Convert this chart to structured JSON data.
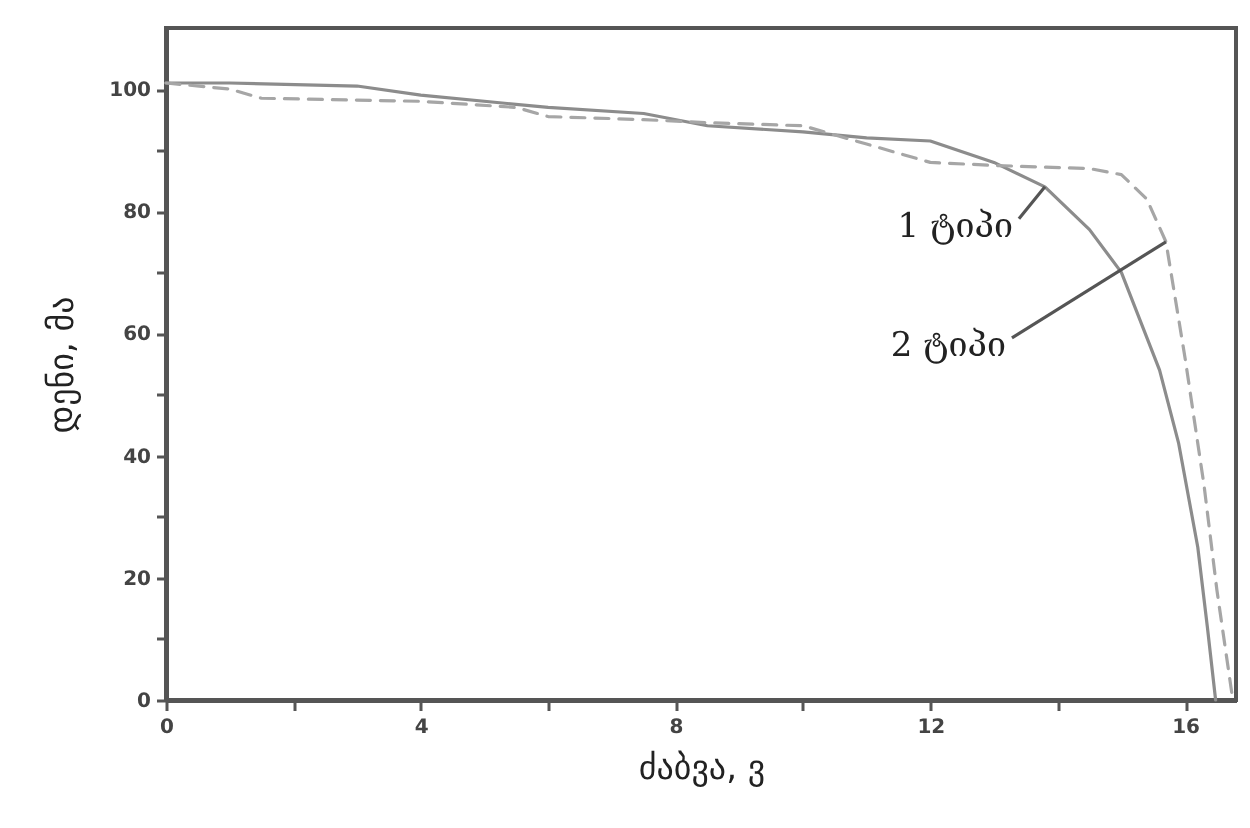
{
  "chart_data": {
    "type": "line",
    "xlabel": "ძაბვა, ვ",
    "ylabel": "დენი, მა",
    "xlim": [
      0,
      16.8
    ],
    "ylim": [
      0,
      110
    ],
    "xticks": [
      0,
      {
        "value": 2,
        "label": null
      },
      4,
      {
        "value": 6,
        "label": null
      },
      8,
      {
        "value": 10,
        "label": null
      },
      12,
      {
        "value": 14,
        "label": null
      },
      16
    ],
    "yticks": [
      0,
      {
        "value": 10,
        "label": null
      },
      20,
      {
        "value": 30,
        "label": null
      },
      40,
      {
        "value": 50,
        "label": null
      },
      60,
      {
        "value": 70,
        "label": null
      },
      80,
      {
        "value": 90,
        "label": null
      },
      100
    ],
    "grid": false,
    "series": [
      {
        "color": "#8c8c8c",
        "line_style": "solid",
        "x": [
          0,
          1,
          3,
          4,
          6,
          7.5,
          8.5,
          10,
          11,
          12,
          13,
          13.8,
          14.5,
          15,
          15.6,
          15.9,
          16.2,
          16.35,
          16.48
        ],
        "values": [
          101,
          101,
          100.5,
          99,
          97,
          96,
          94,
          93,
          92,
          91.5,
          88,
          84,
          77,
          70,
          54,
          42,
          25,
          12,
          0
        ]
      },
      {
        "color": "#a6a6a6",
        "line_style": "dashed",
        "x": [
          0,
          1,
          1.5,
          4,
          5.5,
          6,
          7.5,
          8.5,
          10,
          11,
          12,
          13,
          14.5,
          15,
          15.4,
          15.7,
          16,
          16.3,
          16.5,
          16.75
        ],
        "values": [
          101,
          100,
          98.5,
          98,
          97,
          95.5,
          95,
          94.5,
          94,
          91,
          88,
          87.5,
          87,
          86,
          82,
          75,
          56,
          35,
          18,
          0
        ]
      }
    ],
    "annotations": [
      {
        "text": "1 ტიპი",
        "x": 13.8,
        "y": 84
      },
      {
        "text": "2 ტიპი",
        "x": 15.7,
        "y": 75
      }
    ]
  }
}
